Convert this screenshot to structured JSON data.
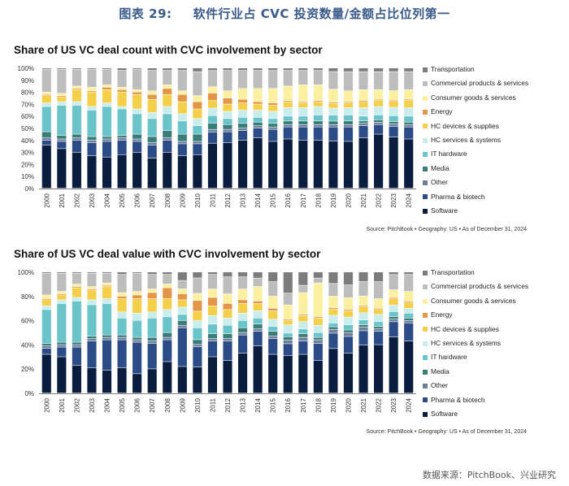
{
  "figure": {
    "number": "图表 29:",
    "title": "软件行业占 CVC 投资数量/金额占比位列第一",
    "data_source": "数据来源：PitchBook、兴业研究"
  },
  "sectors": [
    "Software",
    "Pharma & biotech",
    "Other",
    "Media",
    "IT hardware",
    "HC services & systems",
    "HC devices & supplies",
    "Energy",
    "Consumer goods & services",
    "Commercial products & services",
    "Transportation"
  ],
  "sector_colors": {
    "Software": "#0b1d3e",
    "Pharma & biotech": "#2b4c86",
    "Other": "#6e7f9c",
    "Media": "#3a7d78",
    "IT hardware": "#6cc4cb",
    "HC services & systems": "#c9ecec",
    "HC devices & supplies": "#f4d04a",
    "Energy": "#e3964a",
    "Consumer goods & services": "#fbf0a0",
    "Commercial products & services": "#bdbdbd",
    "Transportation": "#7c7c7c"
  },
  "legend_order": [
    "Transportation",
    "Commercial products & services",
    "Consumer goods & services",
    "Energy",
    "HC devices & supplies",
    "HC services & systems",
    "IT hardware",
    "Media",
    "Other",
    "Pharma & biotech",
    "Software"
  ],
  "chart_data": [
    {
      "type": "bar",
      "stacked": true,
      "title": "Share of US VC deal count with CVC involvement by sector",
      "source": "Source: PitchBook • Geography: US • As of December 31, 2024",
      "ylim": [
        0,
        100
      ],
      "yticks": [
        "0%",
        "10%",
        "20%",
        "30%",
        "40%",
        "50%",
        "60%",
        "70%",
        "80%",
        "90%",
        "100%"
      ],
      "categories": [
        "2000",
        "2001",
        "2002",
        "2003",
        "2004",
        "2005",
        "2006",
        "2007",
        "2008",
        "2009",
        "2010",
        "2011",
        "2012",
        "2013",
        "2014",
        "2015",
        "2016",
        "2017",
        "2018",
        "2019",
        "2020",
        "2021",
        "2022",
        "2023",
        "2024"
      ],
      "series": [
        {
          "name": "Software",
          "values": [
            36,
            33,
            30,
            27,
            26,
            28,
            30,
            25,
            30,
            27,
            28,
            36,
            38,
            40,
            42,
            39,
            41,
            40,
            40,
            40,
            39,
            42,
            45,
            43,
            41
          ]
        },
        {
          "name": "Pharma & biotech",
          "values": [
            4,
            6,
            10,
            11,
            13,
            12,
            9,
            11,
            10,
            10,
            9,
            9,
            9,
            8,
            8,
            10,
            10,
            11,
            11,
            12,
            12,
            10,
            8,
            9,
            10
          ]
        },
        {
          "name": "Other",
          "values": [
            2,
            2,
            2,
            2,
            2,
            2,
            2,
            2,
            2,
            2,
            2,
            2,
            2,
            2,
            2,
            2,
            2,
            2,
            2,
            2,
            2,
            2,
            2,
            2,
            2
          ]
        },
        {
          "name": "Media",
          "values": [
            5,
            3,
            3,
            3,
            2,
            2,
            4,
            5,
            6,
            6,
            6,
            5,
            4,
            4,
            3,
            3,
            3,
            3,
            3,
            3,
            3,
            2,
            2,
            2,
            2
          ]
        },
        {
          "name": "IT hardware",
          "values": [
            21,
            25,
            24,
            22,
            25,
            22,
            17,
            15,
            14,
            11,
            7,
            6,
            5,
            5,
            4,
            4,
            4,
            4,
            5,
            5,
            5,
            4,
            4,
            5,
            5
          ]
        },
        {
          "name": "HC services & systems",
          "values": [
            3,
            3,
            3,
            3,
            3,
            2,
            4,
            5,
            6,
            6,
            6,
            6,
            6,
            6,
            6,
            6,
            7,
            7,
            7,
            6,
            6,
            7,
            7,
            7,
            7
          ]
        },
        {
          "name": "HC devices & supplies",
          "values": [
            6,
            4,
            10,
            12,
            11,
            12,
            12,
            11,
            10,
            10,
            8,
            6,
            6,
            6,
            5,
            5,
            5,
            4,
            4,
            4,
            4,
            5,
            5,
            5,
            6
          ]
        },
        {
          "name": "Energy",
          "values": [
            1,
            1,
            1,
            1,
            2,
            2,
            2,
            4,
            5,
            6,
            6,
            6,
            5,
            3,
            2,
            2,
            1,
            1,
            1,
            1,
            1,
            1,
            1,
            1,
            1
          ]
        },
        {
          "name": "Consumer goods & services",
          "values": [
            2,
            2,
            2,
            3,
            2,
            2,
            2,
            3,
            3,
            3,
            5,
            5,
            6,
            9,
            11,
            12,
            12,
            14,
            13,
            11,
            9,
            9,
            8,
            8,
            8
          ]
        },
        {
          "name": "Commercial products & services",
          "values": [
            19,
            20,
            14,
            15,
            13,
            14,
            17,
            17,
            12,
            17,
            20,
            13,
            17,
            15,
            15,
            15,
            13,
            12,
            12,
            15,
            16,
            15,
            15,
            16,
            15
          ]
        },
        {
          "name": "Transportation",
          "values": [
            1,
            1,
            1,
            1,
            1,
            2,
            1,
            2,
            2,
            2,
            3,
            2,
            2,
            2,
            2,
            2,
            2,
            2,
            2,
            3,
            3,
            3,
            3,
            3,
            3
          ]
        }
      ]
    },
    {
      "type": "bar",
      "stacked": true,
      "title": "Share of US VC deal value with CVC involvement by sector",
      "source": "Source: PitchBook • Geography: US • As of December 31, 2024",
      "ylim": [
        0,
        100
      ],
      "yticks": [
        "0%",
        "20%",
        "40%",
        "60%",
        "80%",
        "100%"
      ],
      "categories": [
        "2000",
        "2001",
        "2002",
        "2003",
        "2004",
        "2005",
        "2006",
        "2007",
        "2008",
        "2009",
        "2010",
        "2011",
        "2012",
        "2013",
        "2014",
        "2015",
        "2016",
        "2017",
        "2018",
        "2019",
        "2020",
        "2021",
        "2022",
        "2023",
        "2024"
      ],
      "series": [
        {
          "name": "Software",
          "values": [
            32,
            30,
            23,
            21,
            19,
            21,
            16,
            20,
            26,
            22,
            22,
            30,
            27,
            33,
            39,
            32,
            32,
            32,
            27,
            35,
            31,
            40,
            40,
            44,
            43
          ]
        },
        {
          "name": "Pharma & biotech",
          "values": [
            5,
            8,
            15,
            22,
            25,
            23,
            26,
            21,
            18,
            32,
            17,
            13,
            16,
            15,
            12,
            13,
            10,
            11,
            14,
            12,
            13,
            12,
            11,
            12,
            15
          ]
        },
        {
          "name": "Other",
          "values": [
            2,
            2,
            2,
            2,
            2,
            2,
            2,
            2,
            2,
            2,
            2,
            2,
            2,
            2,
            2,
            2,
            3,
            3,
            3,
            3,
            3,
            3,
            2,
            2,
            2
          ]
        },
        {
          "name": "Media",
          "values": [
            2,
            2,
            2,
            2,
            2,
            2,
            2,
            3,
            4,
            4,
            4,
            4,
            4,
            4,
            4,
            4,
            3,
            3,
            2,
            2,
            2,
            2,
            2,
            2,
            2
          ]
        },
        {
          "name": "IT hardware",
          "values": [
            28,
            32,
            34,
            26,
            26,
            14,
            14,
            16,
            13,
            5,
            10,
            8,
            7,
            6,
            5,
            4,
            3,
            4,
            4,
            3,
            4,
            4,
            4,
            4,
            4
          ]
        },
        {
          "name": "HC services & systems",
          "values": [
            3,
            3,
            3,
            4,
            4,
            5,
            6,
            5,
            6,
            6,
            6,
            7,
            6,
            6,
            6,
            6,
            7,
            6,
            6,
            6,
            6,
            6,
            6,
            5,
            4
          ]
        },
        {
          "name": "HC devices & supplies",
          "values": [
            5,
            4,
            8,
            8,
            10,
            11,
            12,
            11,
            9,
            6,
            8,
            8,
            7,
            8,
            6,
            7,
            4,
            5,
            6,
            5,
            5,
            5,
            4,
            5,
            5
          ]
        },
        {
          "name": "Energy",
          "values": [
            1,
            1,
            1,
            1,
            1,
            2,
            3,
            5,
            9,
            5,
            9,
            7,
            5,
            3,
            2,
            2,
            1,
            1,
            1,
            1,
            1,
            1,
            1,
            1,
            1
          ]
        },
        {
          "name": "Consumer goods & services",
          "values": [
            3,
            2,
            2,
            2,
            2,
            3,
            3,
            3,
            3,
            4,
            6,
            7,
            8,
            9,
            12,
            10,
            12,
            18,
            28,
            9,
            9,
            8,
            8,
            6,
            8
          ]
        },
        {
          "name": "Commercial products & services",
          "values": [
            18,
            15,
            9,
            11,
            8,
            15,
            15,
            12,
            8,
            7,
            13,
            12,
            14,
            10,
            7,
            12,
            10,
            6,
            4,
            10,
            10,
            12,
            14,
            12,
            14
          ]
        },
        {
          "name": "Transportation",
          "values": [
            1,
            1,
            1,
            1,
            1,
            2,
            1,
            2,
            2,
            7,
            5,
            2,
            4,
            4,
            5,
            8,
            18,
            11,
            5,
            9,
            10,
            8,
            8,
            2,
            2
          ]
        }
      ]
    }
  ]
}
